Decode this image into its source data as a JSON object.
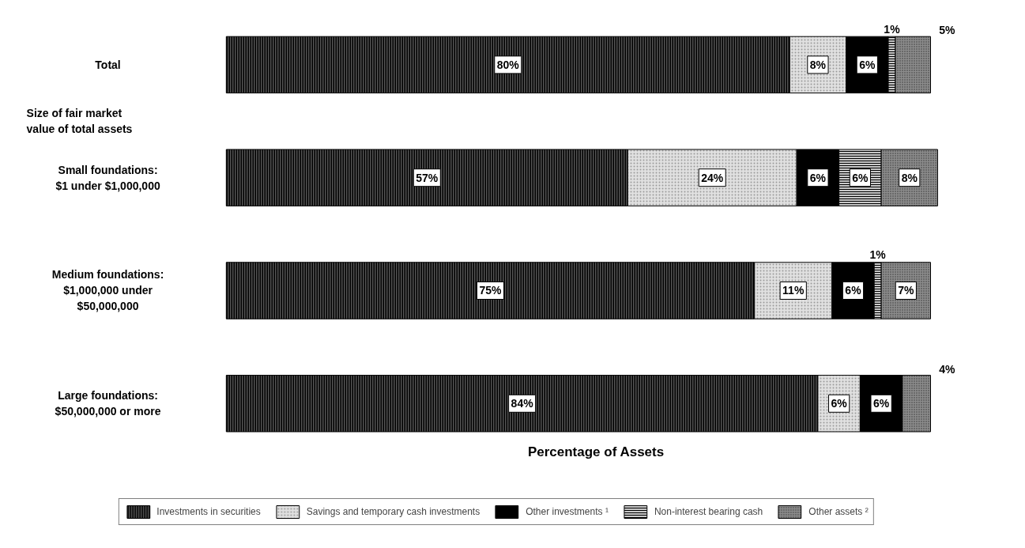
{
  "chart_data": {
    "type": "bar",
    "orientation": "horizontal",
    "stacked": true,
    "categories": [
      "Total",
      "Small foundations: $1 under $1,000,000",
      "Medium foundations: $1,000,000 under $50,000,000",
      "Large foundations: $50,000,000 or more"
    ],
    "annotations": [
      "Size of fair market value of total assets",
      "Percentage of Assets"
    ],
    "series": [
      {
        "name": "Investments in securities",
        "color": "#555555",
        "values": [
          80,
          57,
          75,
          84
        ],
        "value_labels": [
          "80%",
          "57%",
          "75%",
          "84%"
        ]
      },
      {
        "name": "Savings and temporary cash investments",
        "color": "#e0e0e0",
        "values": [
          8,
          24,
          11,
          6
        ],
        "value_labels": [
          "8%",
          "24%",
          "11%",
          "6%"
        ]
      },
      {
        "name": "Other investments ¹",
        "color": "#000000",
        "values": [
          6,
          6,
          6,
          6
        ],
        "value_labels": [
          "6%",
          "6%",
          "6%",
          "6%"
        ]
      },
      {
        "name": "Non-interest bearing cash",
        "color": "#c8c8c8",
        "values": [
          1,
          6,
          1,
          null
        ],
        "value_labels": [
          "1%",
          "6%",
          "1%",
          null
        ]
      },
      {
        "name": "Other assets ²",
        "color": "#8c8c8c",
        "values": [
          5,
          8,
          7,
          4
        ],
        "value_labels": [
          "5%",
          "8%",
          "7%",
          "4%"
        ]
      }
    ],
    "legend": "bottom",
    "grid": false
  }
}
